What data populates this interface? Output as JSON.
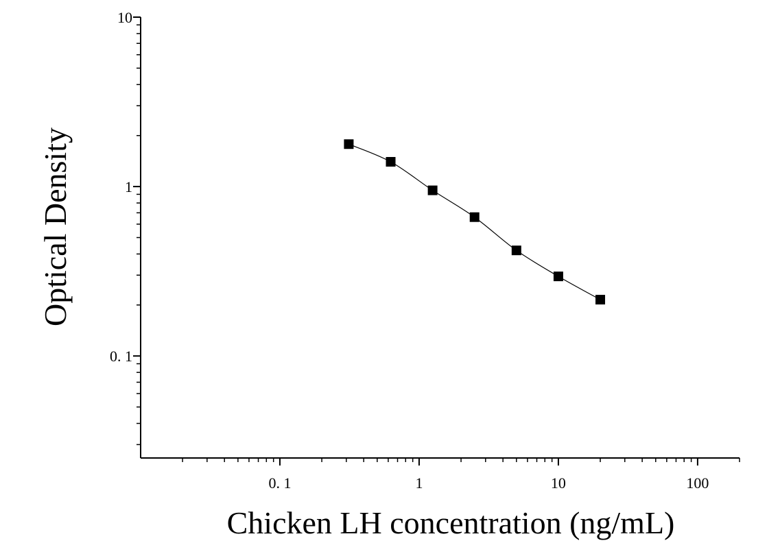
{
  "chart_data": {
    "type": "scatter",
    "title": "",
    "xlabel": "Chicken LH concentration (ng/mL)",
    "ylabel": "Optical Density",
    "x_scale": "log",
    "y_scale": "log",
    "xlim": [
      0.01,
      200
    ],
    "ylim": [
      0.025,
      10
    ],
    "x_ticks": [
      {
        "value": 0.1,
        "label": "0. 1"
      },
      {
        "value": 1,
        "label": "1"
      },
      {
        "value": 10,
        "label": "10"
      },
      {
        "value": 100,
        "label": "100"
      }
    ],
    "y_ticks": [
      {
        "value": 0.1,
        "label": "0. 1"
      },
      {
        "value": 1,
        "label": "1"
      },
      {
        "value": 10,
        "label": "10"
      }
    ],
    "grid": false,
    "legend": false,
    "marker": "square",
    "marker_color": "#000000",
    "line_color": "#000000",
    "series": [
      {
        "x": [
          0.3125,
          0.625,
          1.25,
          2.5,
          5,
          10,
          20
        ],
        "y": [
          1.78,
          1.4,
          0.95,
          0.66,
          0.42,
          0.295,
          0.215
        ]
      }
    ]
  }
}
